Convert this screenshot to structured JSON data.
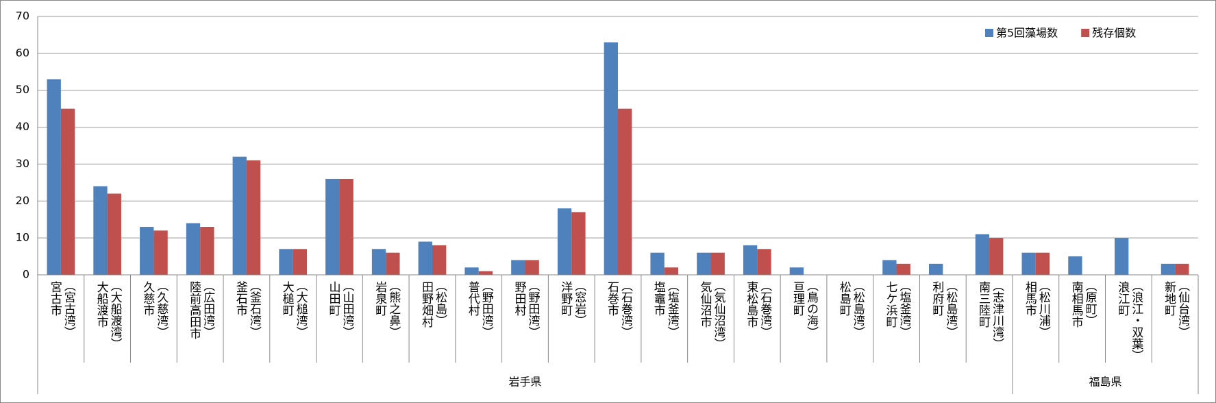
{
  "chart_data": {
    "type": "bar",
    "categories": [
      [
        "宮古市",
        "（宮古湾）"
      ],
      [
        "大船渡市",
        "（大船渡湾）"
      ],
      [
        "久慈市",
        "（久慈湾）"
      ],
      [
        "陸前高田市",
        "（広田湾）"
      ],
      [
        "釜石市",
        "（釜石湾）"
      ],
      [
        "大槌町",
        "（大槌湾）"
      ],
      [
        "山田町",
        "（山田湾）"
      ],
      [
        "岩泉町",
        "（熊之鼻）"
      ],
      [
        "田野畑村",
        "（松島）"
      ],
      [
        "普代村",
        "（野田湾）"
      ],
      [
        "野田村",
        "（野田湾）"
      ],
      [
        "洋野町",
        "（窓岩）"
      ],
      [
        "石巻市",
        "（石巻湾）"
      ],
      [
        "塩竈市",
        "（塩釜湾）"
      ],
      [
        "気仙沼市",
        "（気仙沼湾）"
      ],
      [
        "東松島市",
        "（石巻湾）"
      ],
      [
        "亘理町",
        "（鳥の海）"
      ],
      [
        "松島町",
        "（松島湾）"
      ],
      [
        "七ケ浜町",
        "（塩釜湾）"
      ],
      [
        "利府町",
        "（松島湾）"
      ],
      [
        "南三陸町",
        "（志津川湾）"
      ],
      [
        "相馬市",
        "（松川浦）"
      ],
      [
        "南相馬市",
        "（原町）"
      ],
      [
        "浪江町",
        "（浪江・双葉）"
      ],
      [
        "新地町",
        "（仙台湾）"
      ]
    ],
    "groups": [
      {
        "name": "岩手県",
        "start": 0,
        "end": 20
      },
      {
        "name": "福島県",
        "start": 21,
        "end": 24
      }
    ],
    "series": [
      {
        "name": "第5回藻場数",
        "color": "#4f81bd",
        "values": [
          53,
          24,
          13,
          14,
          32,
          7,
          26,
          7,
          9,
          2,
          4,
          18,
          63,
          6,
          6,
          8,
          2,
          0,
          4,
          3,
          11,
          6,
          5,
          10,
          3
        ]
      },
      {
        "name": "残存個数",
        "color": "#c0504d",
        "values": [
          45,
          22,
          12,
          13,
          31,
          7,
          26,
          6,
          8,
          1,
          4,
          17,
          45,
          2,
          6,
          7,
          0,
          0,
          3,
          0,
          10,
          6,
          0,
          0,
          3
        ]
      }
    ],
    "ylim": [
      0,
      70
    ],
    "yticks": [
      0,
      10,
      20,
      30,
      40,
      50,
      60,
      70
    ],
    "grid": true,
    "legend": "top-right"
  }
}
